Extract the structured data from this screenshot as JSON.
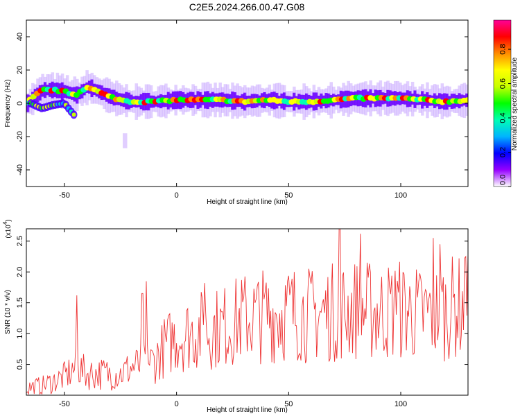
{
  "title": "C2E5.2024.266.00.47.G08",
  "chart_data": [
    {
      "type": "heatmap",
      "xlabel": "Height of straight line (km)",
      "ylabel": "Frequency (Hz)",
      "xlim": [
        -67,
        130
      ],
      "ylim": [
        -50,
        50
      ],
      "xticks": [
        -50,
        0,
        50,
        100
      ],
      "yticks": [
        -40,
        -20,
        0,
        20,
        40
      ],
      "colorbar": {
        "label": "Normalized spectral amplitude",
        "ticks": [
          "0.0",
          "0.2",
          "0.4",
          "0.6",
          "0.8"
        ],
        "tick_values": [
          0.0,
          0.2,
          0.4,
          0.6,
          0.8
        ],
        "range": [
          0,
          0.97
        ],
        "colors": [
          "#ffffff",
          "#9600ff",
          "#0000ff",
          "#00b4ff",
          "#00ffb4",
          "#00ff00",
          "#c8ff00",
          "#ffff00",
          "#ff8c00",
          "#ff0000",
          "#ff0096"
        ]
      },
      "centerline": {
        "x": [
          -67,
          -60,
          -55,
          -50,
          -45,
          -40,
          -35,
          -30,
          -25,
          -20,
          -10,
          0,
          10,
          20,
          30,
          40,
          50,
          60,
          70,
          80,
          90,
          100,
          110,
          120,
          130
        ],
        "y": [
          0,
          8,
          8,
          7,
          5,
          10,
          7,
          4,
          2,
          1,
          1,
          2,
          2,
          2,
          1,
          2,
          1,
          1,
          2,
          3,
          3,
          3,
          2,
          1,
          2
        ]
      },
      "secondary_branch": {
        "x": [
          -65,
          -60,
          -55,
          -50,
          -47,
          -45
        ],
        "y": [
          0,
          -3,
          -1,
          0,
          -5,
          -8
        ]
      },
      "faint_patch": {
        "x": [
          -24,
          -22
        ],
        "y": [
          -27,
          -18
        ]
      }
    },
    {
      "type": "line",
      "xlabel": "Height of straight line (km)",
      "ylabel": "SNR (10 * v/v)",
      "y_multiplier": "(x10",
      "y_multiplier_exp": "4",
      "y_multiplier_close": ")",
      "xlim": [
        -67,
        130
      ],
      "ylim": [
        0,
        2.7
      ],
      "xticks": [
        -50,
        0,
        50,
        100
      ],
      "yticks": [
        0.5,
        1.0,
        1.5,
        2.0,
        2.5
      ],
      "color": "#ee3333",
      "trend": {
        "x": [
          -67,
          -60,
          -50,
          -45,
          -40,
          -30,
          -25,
          -20,
          -10,
          -5,
          0,
          10,
          20,
          30,
          40,
          50,
          60,
          70,
          80,
          90,
          100,
          110,
          120,
          130
        ],
        "y": [
          0.12,
          0.15,
          0.3,
          0.45,
          0.35,
          0.35,
          0.35,
          0.45,
          0.55,
          0.8,
          0.95,
          1.05,
          1.1,
          1.25,
          1.3,
          1.35,
          1.3,
          1.35,
          1.4,
          1.35,
          1.4,
          1.3,
          1.4,
          1.45
        ]
      },
      "peaks": {
        "x": [
          -44,
          -13,
          -15,
          13,
          73,
          82,
          98,
          115,
          118,
          129
        ],
        "y": [
          1.62,
          1.85,
          1.65,
          1.82,
          2.7,
          2.62,
          2.25,
          2.55,
          2.45,
          2.25
        ]
      }
    }
  ]
}
